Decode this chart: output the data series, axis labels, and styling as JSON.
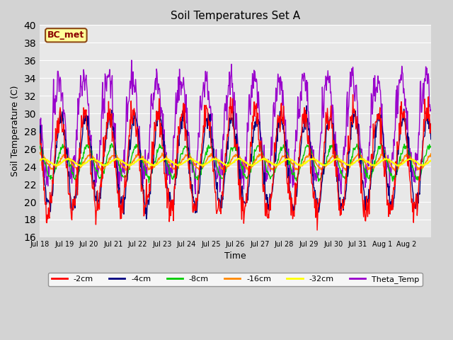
{
  "title": "Soil Temperatures Set A",
  "xlabel": "Time",
  "ylabel": "Soil Temperature (C)",
  "ylim": [
    16,
    40
  ],
  "yticks": [
    16,
    18,
    20,
    22,
    24,
    26,
    28,
    30,
    32,
    34,
    36,
    38,
    40
  ],
  "annotation_text": "BC_met",
  "annotation_bg": "#ffff99",
  "annotation_border": "#8B4513",
  "series_colors": {
    "-2cm": "#ff0000",
    "-4cm": "#000080",
    "-8cm": "#00cc00",
    "-16cm": "#ff8800",
    "-32cm": "#ffff00",
    "Theta_Temp": "#9900cc"
  },
  "x_tick_labels": [
    "Jul 18",
    "Jul 19",
    "Jul 20",
    "Jul 21",
    "Jul 22",
    "Jul 23",
    "Jul 24",
    "Jul 25",
    "Jul 26",
    "Jul 27",
    "Jul 28",
    "Jul 29",
    "Jul 30",
    "Jul 31",
    "Aug 1",
    "Aug 2"
  ],
  "num_days": 16,
  "points_per_day": 48
}
